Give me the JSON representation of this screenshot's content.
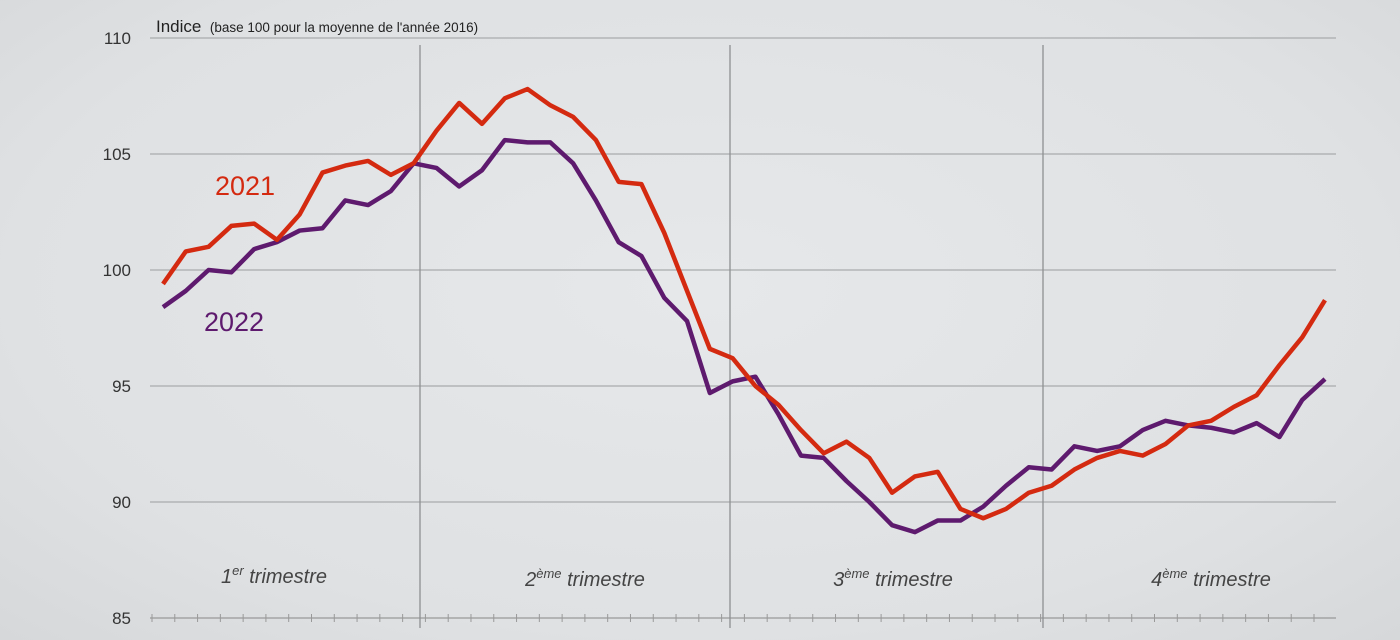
{
  "chart_data": {
    "type": "line",
    "title": "Indice",
    "subtitle": "(base 100 pour la moyenne de l'année 2016)",
    "ylim": [
      85,
      110
    ],
    "yticks": [
      "85",
      "90",
      "95",
      "100",
      "105",
      "110"
    ],
    "grid": true,
    "quarters": [
      {
        "base": "1",
        "sup": "er",
        "rest": " trimestre"
      },
      {
        "base": "2",
        "sup": "ème",
        "rest": " trimestre"
      },
      {
        "base": "3",
        "sup": "ème",
        "rest": " trimestre"
      },
      {
        "base": "4",
        "sup": "ème",
        "rest": " trimestre"
      }
    ],
    "series": [
      {
        "name": "2021",
        "color": "#d42a10",
        "values": [
          99.4,
          100.8,
          101.0,
          101.9,
          102.0,
          101.3,
          102.4,
          104.2,
          104.5,
          104.7,
          104.1,
          104.6,
          106.0,
          107.2,
          106.3,
          107.4,
          107.8,
          107.1,
          106.6,
          105.6,
          103.8,
          103.7,
          101.6,
          99.1,
          96.6,
          96.2,
          95.0,
          94.2,
          93.1,
          92.1,
          92.6,
          91.9,
          90.4,
          91.1,
          91.3,
          89.7,
          89.3,
          89.7,
          90.4,
          90.7,
          91.4,
          91.9,
          92.2,
          92.0,
          92.5,
          93.3,
          93.5,
          94.1,
          94.6,
          95.9,
          97.1,
          98.7
        ]
      },
      {
        "name": "2022",
        "color": "#5e1a6e",
        "values": [
          98.4,
          99.1,
          100.0,
          99.9,
          100.9,
          101.2,
          101.7,
          101.8,
          103.0,
          102.8,
          103.4,
          104.6,
          104.4,
          103.6,
          104.3,
          105.6,
          105.5,
          105.5,
          104.6,
          103.0,
          101.2,
          100.6,
          98.8,
          97.8,
          94.7,
          95.2,
          95.4,
          93.8,
          92.0,
          91.9,
          90.9,
          90.0,
          89.0,
          88.7,
          89.2,
          89.2,
          89.8,
          90.7,
          91.5,
          91.4,
          92.4,
          92.2,
          92.4,
          93.1,
          93.5,
          93.3,
          93.2,
          93.0,
          93.4,
          92.8,
          94.4,
          95.3
        ]
      }
    ]
  }
}
